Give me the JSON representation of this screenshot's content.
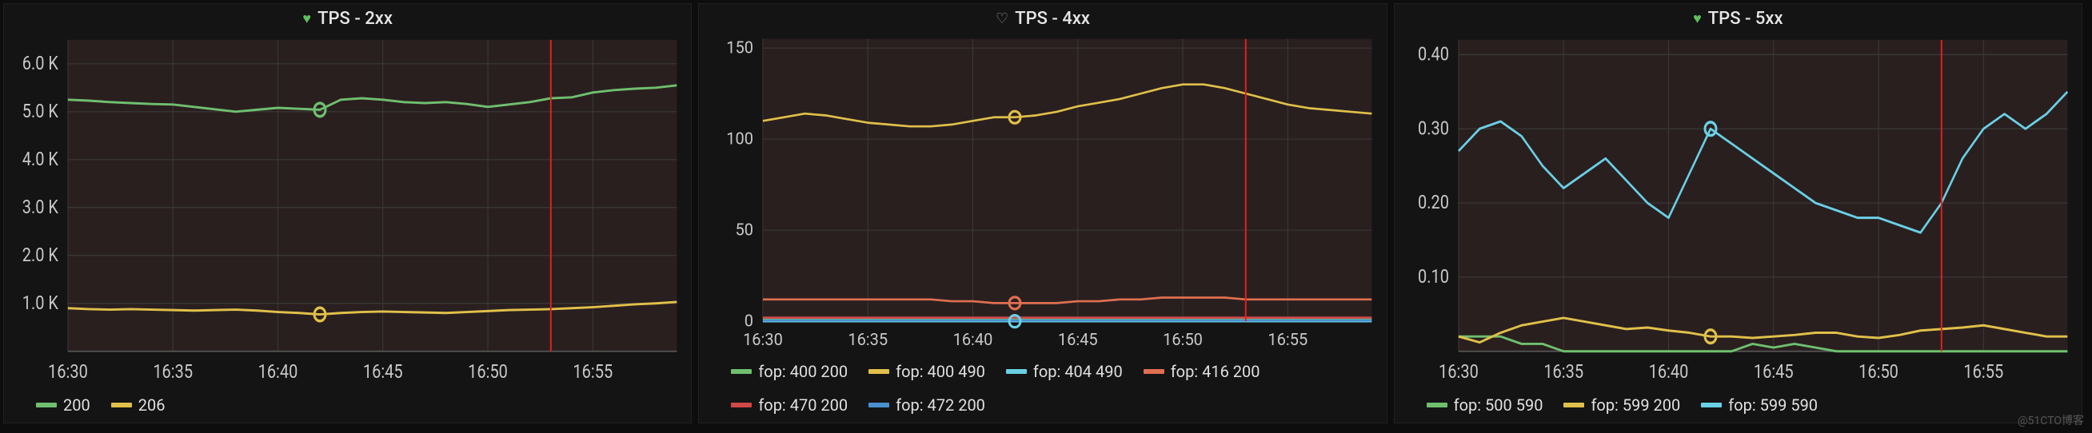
{
  "global": {
    "panel_bg": "#141414",
    "plot_bg": "#2a1f1f",
    "grid_color": "#3a3a3a",
    "axis_text_color": "#c8c8c8",
    "cursor_line_color": "#e02020",
    "cursor_x_index": 8,
    "marker_x_index": 4,
    "x_categories": [
      "16:30",
      "16:31",
      "16:32",
      "16:33",
      "16:34",
      "16:35",
      "16:36",
      "16:37",
      "16:38",
      "16:39",
      "16:40",
      "16:41",
      "16:42",
      "16:43",
      "16:44",
      "16:45",
      "16:46",
      "16:47",
      "16:48",
      "16:49",
      "16:50",
      "16:51",
      "16:52",
      "16:53",
      "16:54",
      "16:55",
      "16:56",
      "16:57",
      "16:58",
      "16:59"
    ],
    "x_tick_labels": [
      "16:30",
      "16:35",
      "16:40",
      "16:45",
      "16:50",
      "16:55"
    ],
    "x_tick_at": [
      0,
      5,
      10,
      15,
      20,
      25
    ],
    "watermark": "@51CTO博客"
  },
  "panels": [
    {
      "title": "TPS - 2xx",
      "heart": "green",
      "ylim": [
        0,
        6500
      ],
      "yticks": [
        1000,
        2000,
        3000,
        4000,
        5000,
        6000
      ],
      "ytick_labels": [
        "1.0 K",
        "2.0 K",
        "3.0 K",
        "4.0 K",
        "5.0 K",
        "6.0 K"
      ],
      "series": [
        {
          "name": "200",
          "color": "#6fbf6f",
          "values": [
            5250,
            5230,
            5200,
            5180,
            5160,
            5150,
            5100,
            5050,
            5000,
            5040,
            5080,
            5060,
            5040,
            5250,
            5280,
            5250,
            5200,
            5180,
            5200,
            5160,
            5100,
            5150,
            5200,
            5280,
            5300,
            5400,
            5450,
            5480,
            5500,
            5550
          ]
        },
        {
          "name": "206",
          "color": "#e0c04a",
          "values": [
            900,
            880,
            870,
            880,
            870,
            860,
            850,
            860,
            870,
            850,
            820,
            800,
            770,
            800,
            820,
            830,
            820,
            810,
            800,
            820,
            840,
            860,
            870,
            880,
            900,
            920,
            950,
            980,
            1000,
            1030
          ]
        }
      ],
      "marker_series_indices": [
        0,
        1
      ]
    },
    {
      "title": "TPS - 4xx",
      "heart": "grey",
      "ylim": [
        0,
        155
      ],
      "yticks": [
        0,
        50,
        100,
        150
      ],
      "ytick_labels": [
        "0",
        "50",
        "100",
        "150"
      ],
      "series": [
        {
          "name": "fop: 400 200",
          "color": "#6fbf6f",
          "values": [
            1,
            1,
            1,
            1,
            1,
            1,
            1,
            1,
            1,
            1,
            1,
            1,
            1,
            1,
            1,
            1,
            1,
            1,
            1,
            1,
            1,
            1,
            1,
            1,
            1,
            1,
            1,
            1,
            1,
            1
          ]
        },
        {
          "name": "fop: 400 490",
          "color": "#e0c04a",
          "values": [
            110,
            112,
            114,
            113,
            111,
            109,
            108,
            107,
            107,
            108,
            110,
            112,
            112,
            113,
            115,
            118,
            120,
            122,
            125,
            128,
            130,
            130,
            128,
            125,
            122,
            119,
            117,
            116,
            115,
            114
          ]
        },
        {
          "name": "fop: 404 490",
          "color": "#6ad0e6",
          "values": [
            0,
            0,
            0,
            0,
            0,
            0,
            0,
            0,
            0,
            0,
            0,
            0,
            0,
            0,
            0,
            0,
            0,
            0,
            0,
            0,
            0,
            0,
            0,
            0,
            0,
            0,
            0,
            0,
            0,
            0
          ]
        },
        {
          "name": "fop: 416 200",
          "color": "#e07050",
          "values": [
            12,
            12,
            12,
            12,
            12,
            12,
            12,
            12,
            12,
            11,
            11,
            10,
            10,
            10,
            10,
            11,
            11,
            12,
            12,
            13,
            13,
            13,
            13,
            12,
            12,
            12,
            12,
            12,
            12,
            12
          ]
        },
        {
          "name": "fop: 470 200",
          "color": "#d04848",
          "values": [
            2,
            2,
            2,
            2,
            2,
            2,
            2,
            2,
            2,
            2,
            2,
            2,
            2,
            2,
            2,
            2,
            2,
            2,
            2,
            2,
            2,
            2,
            2,
            2,
            2,
            2,
            2,
            2,
            2,
            2
          ]
        },
        {
          "name": "fop: 472 200",
          "color": "#4a90d0",
          "values": [
            0.5,
            0.5,
            0.5,
            0.5,
            0.5,
            0.5,
            0.5,
            0.5,
            0.5,
            0.5,
            0.5,
            0.5,
            0.5,
            0.5,
            0.5,
            0.5,
            0.5,
            0.5,
            0.5,
            0.5,
            0.5,
            0.5,
            0.5,
            0.5,
            0.5,
            0.5,
            0.5,
            0.5,
            0.5,
            0.5
          ]
        }
      ],
      "marker_series_indices": [
        1,
        3,
        2
      ]
    },
    {
      "title": "TPS - 5xx",
      "heart": "green",
      "ylim": [
        0,
        0.42
      ],
      "yticks": [
        0.1,
        0.2,
        0.3,
        0.4
      ],
      "ytick_labels": [
        "0.10",
        "0.20",
        "0.30",
        "0.40"
      ],
      "series": [
        {
          "name": "fop: 500 590",
          "color": "#6fbf6f",
          "values": [
            0.02,
            0.02,
            0.02,
            0.01,
            0.01,
            0,
            0,
            0,
            0,
            0,
            0,
            0,
            0,
            0,
            0.01,
            0.005,
            0.01,
            0.005,
            0,
            0,
            0,
            0,
            0,
            0,
            0,
            0,
            0,
            0,
            0,
            0
          ]
        },
        {
          "name": "fop: 599 200",
          "color": "#e0c04a",
          "values": [
            0.02,
            0.012,
            0.025,
            0.035,
            0.04,
            0.045,
            0.04,
            0.035,
            0.03,
            0.032,
            0.028,
            0.025,
            0.02,
            0.02,
            0.018,
            0.02,
            0.022,
            0.025,
            0.025,
            0.02,
            0.018,
            0.022,
            0.028,
            0.03,
            0.032,
            0.035,
            0.03,
            0.025,
            0.02,
            0.02
          ]
        },
        {
          "name": "fop: 599 590",
          "color": "#6ad0e6",
          "values": [
            0.27,
            0.3,
            0.31,
            0.29,
            0.25,
            0.22,
            0.24,
            0.26,
            0.23,
            0.2,
            0.18,
            0.24,
            0.3,
            0.28,
            0.26,
            0.24,
            0.22,
            0.2,
            0.19,
            0.18,
            0.18,
            0.17,
            0.16,
            0.2,
            0.26,
            0.3,
            0.32,
            0.3,
            0.32,
            0.35
          ]
        }
      ],
      "marker_series_indices": [
        2,
        1
      ]
    }
  ]
}
